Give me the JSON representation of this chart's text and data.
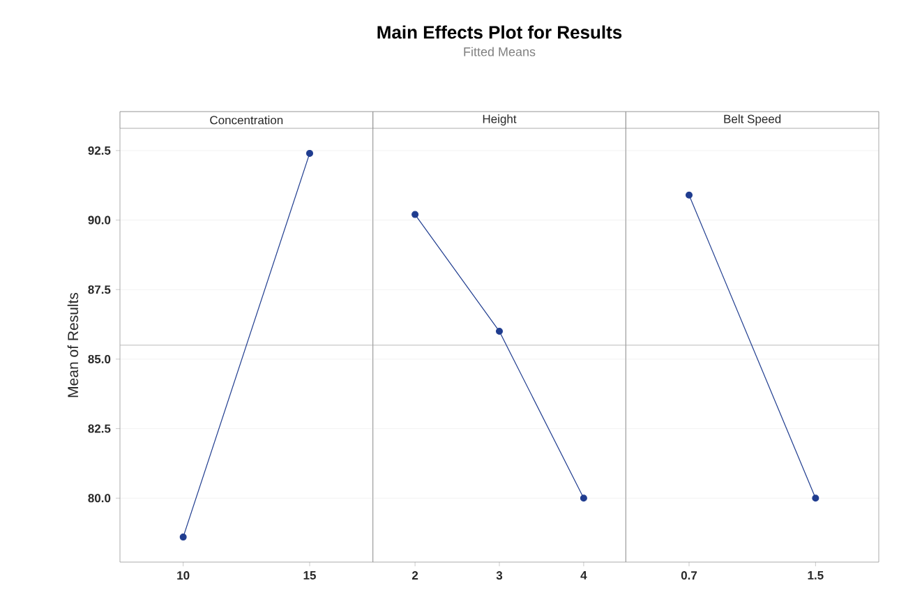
{
  "chart_data": [
    {
      "type": "line",
      "title": "Concentration",
      "ylabel": "Mean of Results",
      "annotations": [
        "**Main Effects Plot for Results**",
        "Fitted Means"
      ],
      "categories": [
        "10",
        "15"
      ],
      "series": [
        {
          "color": "#1f3c8f",
          "values": [
            78.6,
            92.4
          ]
        }
      ],
      "ylim": [
        77.7,
        93.3
      ],
      "yticks": [
        {
          "value": 80,
          "label": "80.0"
        },
        {
          "value": 82.5,
          "label": "82.5"
        },
        {
          "value": 85,
          "label": "85.0"
        },
        {
          "value": 87.5,
          "label": "87.5"
        },
        {
          "value": 90,
          "label": "90.0"
        },
        {
          "value": 92.5,
          "label": "92.5"
        }
      ],
      "ref_lines": [
        {
          "axis": "y",
          "value": 85.5,
          "color": "#b0b0b0"
        }
      ],
      "grid": "y",
      "marker": "circle",
      "line_style": "solid"
    },
    {
      "type": "line",
      "title": "Height",
      "categories": [
        "2",
        "3",
        "4"
      ],
      "series": [
        {
          "color": "#1f3c8f",
          "values": [
            90.2,
            86.0,
            80.0
          ]
        }
      ],
      "ylim": [
        77.7,
        93.3
      ],
      "yticks": [
        {
          "value": 80,
          "label": null
        },
        {
          "value": 82.5,
          "label": null
        },
        {
          "value": 85,
          "label": null
        },
        {
          "value": 87.5,
          "label": null
        },
        {
          "value": 90,
          "label": null
        },
        {
          "value": 92.5,
          "label": null
        }
      ],
      "tick_labels": "x",
      "ref_lines": [
        {
          "axis": "y",
          "value": 85.5,
          "color": "#b0b0b0"
        }
      ],
      "grid": "y",
      "marker": "circle",
      "line_style": "solid"
    },
    {
      "type": "line",
      "title": "Belt Speed",
      "categories": [
        "0.7",
        "1.5"
      ],
      "series": [
        {
          "color": "#1f3c8f",
          "values": [
            90.9,
            80.0
          ]
        }
      ],
      "ylim": [
        77.7,
        93.3
      ],
      "yticks": [
        {
          "value": 80,
          "label": null
        },
        {
          "value": 82.5,
          "label": null
        },
        {
          "value": 85,
          "label": null
        },
        {
          "value": 87.5,
          "label": null
        },
        {
          "value": 90,
          "label": null
        },
        {
          "value": 92.5,
          "label": null
        }
      ],
      "tick_labels": "x",
      "ref_lines": [
        {
          "axis": "y",
          "value": 85.5,
          "color": "#b0b0b0"
        }
      ],
      "grid": "y",
      "marker": "circle",
      "line_style": "solid"
    }
  ]
}
